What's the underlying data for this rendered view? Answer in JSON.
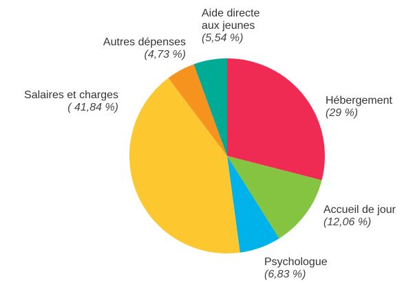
{
  "chart_data": {
    "type": "pie",
    "categories": [
      "Hébergement",
      "Accueil de jour",
      "Psychologue",
      "Salaires et charges",
      "Autres dépenses",
      "Aide directe aux jeunes"
    ],
    "values": [
      29,
      12.06,
      6.83,
      41.84,
      4.73,
      5.54
    ],
    "value_labels": [
      "(29 %)",
      "(12,06 %)",
      "(6,83 %)",
      "( 41,84 %)",
      "(4,73 %)",
      "(5,54 %)"
    ],
    "colors": [
      "#ef2b54",
      "#84c441",
      "#00b2ea",
      "#fdc82f",
      "#f6921e",
      "#00ab96"
    ]
  }
}
